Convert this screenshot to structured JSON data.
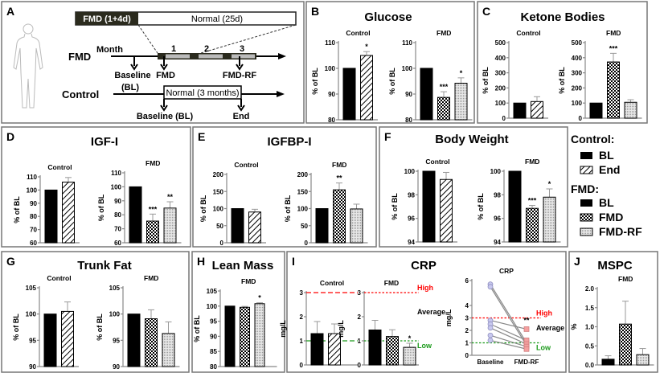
{
  "diagram": {
    "letter": "A",
    "fmd_box": "FMD (1+4d)",
    "normal_box": "Normal (25d)",
    "month_label": "Month",
    "months": [
      "1",
      "2",
      "3"
    ],
    "fmd_row": "FMD",
    "control_row": "Control",
    "fmd_points": [
      "Baseline",
      "(BL)",
      "FMD",
      "FMD-RF"
    ],
    "control_box": "Normal (3 months)",
    "control_points": [
      "Baseline (BL)",
      "End"
    ]
  },
  "legend": {
    "control_heading": "Control:",
    "control_items": [
      {
        "label": "BL",
        "fill": "solid"
      },
      {
        "label": "End",
        "fill": "hatch"
      }
    ],
    "fmd_heading": "FMD:",
    "fmd_items": [
      {
        "label": "BL",
        "fill": "solid"
      },
      {
        "label": "FMD",
        "fill": "crosshatch"
      },
      {
        "label": "FMD-RF",
        "fill": "dotted"
      }
    ]
  },
  "colors": {
    "high_line": "#ff0000",
    "low_line": "#1a9a1a",
    "paired_baseline": "#c8c8ee",
    "paired_fmdrf": "#f4a0a0",
    "error_bar": "#999999"
  },
  "chart_data": [
    {
      "panel": "B",
      "title": "Glucose",
      "type": "bar",
      "subplots": [
        {
          "title": "Control",
          "ylabel": "% of BL",
          "ylim": [
            80,
            110
          ],
          "ticks": [
            80,
            90,
            100,
            110
          ],
          "categories": [
            "BL",
            "End"
          ],
          "values": [
            100,
            105
          ],
          "errors": [
            0,
            1.5
          ],
          "sig": [
            "",
            "*"
          ],
          "fills": [
            "solid",
            "hatch"
          ]
        },
        {
          "title": "FMD",
          "ylabel": "% of BL",
          "ylim": [
            80,
            110
          ],
          "ticks": [
            80,
            90,
            100,
            110
          ],
          "categories": [
            "BL",
            "FMD",
            "FMD-RF"
          ],
          "values": [
            100,
            88.7,
            94.2
          ],
          "errors": [
            0,
            2.2,
            2.1
          ],
          "sig": [
            "",
            "***",
            "*"
          ],
          "fills": [
            "solid",
            "crosshatch",
            "dotted"
          ]
        }
      ]
    },
    {
      "panel": "C",
      "title": "Ketone Bodies",
      "type": "bar",
      "subplots": [
        {
          "title": "Control",
          "ylabel": "% of BL",
          "ylim": [
            0,
            500
          ],
          "ticks": [
            0,
            100,
            200,
            300,
            400,
            500
          ],
          "categories": [
            "BL",
            "End"
          ],
          "values": [
            100,
            110
          ],
          "errors": [
            0,
            32
          ],
          "sig": [
            "",
            ""
          ],
          "fills": [
            "solid",
            "hatch"
          ]
        },
        {
          "title": "FMD",
          "ylabel": "% of BL",
          "ylim": [
            0,
            500
          ],
          "ticks": [
            0,
            100,
            200,
            300,
            400,
            500
          ],
          "categories": [
            "BL",
            "FMD",
            "FMD-RF"
          ],
          "values": [
            100,
            372,
            105
          ],
          "errors": [
            0,
            57,
            17
          ],
          "sig": [
            "",
            "***",
            ""
          ],
          "fills": [
            "solid",
            "crosshatch",
            "dotted"
          ]
        }
      ]
    },
    {
      "panel": "D",
      "title": "IGF-I",
      "type": "bar",
      "subplots": [
        {
          "title": "Control",
          "ylabel": "% of BL",
          "ylim": [
            60,
            110
          ],
          "ticks": [
            60,
            70,
            80,
            90,
            100,
            110
          ],
          "categories": [
            "BL",
            "End"
          ],
          "values": [
            100,
            106
          ],
          "errors": [
            0,
            3.5
          ],
          "sig": [
            "",
            ""
          ],
          "fills": [
            "solid",
            "hatch"
          ]
        },
        {
          "title": "FMD",
          "ylabel": "% of BL",
          "ylim": [
            60,
            110
          ],
          "ticks": [
            60,
            70,
            80,
            90,
            100,
            110
          ],
          "categories": [
            "BL",
            "FMD",
            "FMD-RF"
          ],
          "values": [
            100,
            75.5,
            84.8
          ],
          "errors": [
            0,
            5,
            4.5
          ],
          "sig": [
            "",
            "***",
            "**"
          ],
          "fills": [
            "solid",
            "crosshatch",
            "dotted"
          ]
        }
      ]
    },
    {
      "panel": "E",
      "title": "IGFBP-I",
      "type": "bar",
      "subplots": [
        {
          "title": "Control",
          "ylabel": "% of BL",
          "ylim": [
            0,
            200
          ],
          "ticks": [
            0,
            50,
            100,
            150,
            200
          ],
          "categories": [
            "BL",
            "End"
          ],
          "values": [
            100,
            90
          ],
          "errors": [
            0,
            8
          ],
          "sig": [
            "",
            ""
          ],
          "fills": [
            "solid",
            "hatch"
          ]
        },
        {
          "title": "FMD",
          "ylabel": "% of BL",
          "ylim": [
            0,
            200
          ],
          "ticks": [
            0,
            50,
            100,
            150,
            200
          ],
          "categories": [
            "BL",
            "FMD",
            "FMD-RF"
          ],
          "values": [
            100,
            155,
            99
          ],
          "errors": [
            0,
            20,
            14
          ],
          "sig": [
            "",
            "**",
            ""
          ],
          "fills": [
            "solid",
            "crosshatch",
            "dotted"
          ]
        }
      ]
    },
    {
      "panel": "F",
      "title": "Body Weight",
      "type": "bar",
      "subplots": [
        {
          "title": "Control",
          "ylabel": "% of BL",
          "ylim": [
            94,
            100
          ],
          "ticks": [
            94,
            96,
            98,
            100
          ],
          "categories": [
            "BL",
            "End"
          ],
          "values": [
            100,
            99.3
          ],
          "errors": [
            0,
            0.6
          ],
          "sig": [
            "",
            ""
          ],
          "fills": [
            "solid",
            "hatch"
          ]
        },
        {
          "title": "FMD",
          "ylabel": "% of BL",
          "ylim": [
            94,
            100
          ],
          "ticks": [
            94,
            96,
            98,
            100
          ],
          "categories": [
            "BL",
            "FMD",
            "FMD-RF"
          ],
          "values": [
            100,
            96.85,
            97.8
          ],
          "errors": [
            0,
            0.25,
            0.7
          ],
          "sig": [
            "",
            "***",
            "*"
          ],
          "fills": [
            "solid",
            "crosshatch",
            "dotted"
          ]
        }
      ]
    },
    {
      "panel": "G",
      "title": "Trunk Fat",
      "type": "bar",
      "subplots": [
        {
          "title": "Control",
          "ylabel": "% of BL",
          "ylim": [
            90,
            105
          ],
          "ticks": [
            90,
            95,
            100,
            105
          ],
          "categories": [
            "BL",
            "End"
          ],
          "values": [
            100,
            100.5
          ],
          "errors": [
            0,
            1.8
          ],
          "sig": [
            "",
            ""
          ],
          "fills": [
            "solid",
            "hatch"
          ]
        },
        {
          "title": "FMD",
          "ylabel": "% of BL",
          "ylim": [
            90,
            105
          ],
          "ticks": [
            90,
            95,
            100,
            105
          ],
          "categories": [
            "BL",
            "FMD",
            "FMD-RF"
          ],
          "values": [
            100,
            99.1,
            96.3
          ],
          "errors": [
            0,
            1.7,
            2.2
          ],
          "sig": [
            "",
            "",
            ""
          ],
          "fills": [
            "solid",
            "crosshatch",
            "dotted"
          ]
        }
      ]
    },
    {
      "panel": "H",
      "title": "Lean Mass",
      "type": "bar",
      "subplots": [
        {
          "title": "FMD",
          "ylabel": "% of BL",
          "ylim": [
            80,
            105
          ],
          "ticks": [
            80,
            85,
            90,
            95,
            100,
            105
          ],
          "categories": [
            "BL",
            "FMD",
            "FMD-RF"
          ],
          "values": [
            100,
            99.6,
            100.8
          ],
          "errors": [
            0,
            0.3,
            0.3
          ],
          "sig": [
            "",
            "",
            "*"
          ],
          "fills": [
            "solid",
            "crosshatch",
            "dotted"
          ]
        }
      ]
    },
    {
      "panel": "I",
      "title": "CRP",
      "type": "bar",
      "subplots": [
        {
          "title": "Control",
          "ylabel": "mg/L",
          "ylim": [
            0,
            3
          ],
          "ticks": [
            0,
            1,
            2,
            3
          ],
          "categories": [
            "BL",
            "End"
          ],
          "values": [
            1.3,
            1.3
          ],
          "errors": [
            0.5,
            0.4
          ],
          "sig": [
            "",
            ""
          ],
          "fills": [
            "solid",
            "hatch"
          ],
          "ref_lines": [
            {
              "y": 3,
              "color": "high_line",
              "label": ""
            },
            {
              "y": 1,
              "color": "low_line",
              "label": ""
            }
          ]
        },
        {
          "title": "FMD",
          "ylabel": "mg/L",
          "ylim": [
            0,
            3
          ],
          "ticks": [
            0,
            1,
            2,
            3
          ],
          "categories": [
            "BL",
            "FMD",
            "FMD-RF"
          ],
          "values": [
            1.45,
            1.18,
            0.73
          ],
          "errors": [
            0.4,
            0.28,
            0.17
          ],
          "sig": [
            "",
            "",
            "*"
          ],
          "fills": [
            "solid",
            "crosshatch",
            "dotted"
          ],
          "ref_lines": [
            {
              "y": 3,
              "color": "high_line",
              "label": "High"
            },
            {
              "y": 1,
              "color": "low_line",
              "label": "Low"
            }
          ],
          "band_label": "Average"
        },
        {
          "title": "CRP",
          "type": "paired",
          "ylabel": "mg/L",
          "ylim": [
            0,
            6
          ],
          "ticks": [
            0,
            1,
            2,
            3,
            4,
            6
          ],
          "categories": [
            "Baseline",
            "FMD-RF"
          ],
          "pairs": [
            [
              5.7,
              1.0
            ],
            [
              5.5,
              0.8
            ],
            [
              2.8,
              2.1
            ],
            [
              2.5,
              1.2
            ],
            [
              2.2,
              0.9
            ],
            [
              1.6,
              0.7
            ],
            [
              1.2,
              0.5
            ]
          ],
          "sig": "**",
          "ref_lines": [
            {
              "y": 3,
              "color": "high_line",
              "label": "High"
            },
            {
              "y": 1,
              "color": "low_line",
              "label": "Low"
            }
          ],
          "band_label": "Average"
        }
      ]
    },
    {
      "panel": "J",
      "title": "MSPC",
      "type": "bar",
      "subplots": [
        {
          "title": "FMD",
          "ylabel": "%",
          "ylim": [
            0,
            2
          ],
          "ticks": [
            "0.0",
            "0.5",
            "1.0",
            "1.5",
            "2.0"
          ],
          "categories": [
            "BL",
            "FMD",
            "FMD-RF"
          ],
          "values": [
            0.15,
            1.07,
            0.27
          ],
          "errors": [
            0.09,
            0.6,
            0.16
          ],
          "sig": [
            "",
            "",
            ""
          ],
          "fills": [
            "solid",
            "crosshatch",
            "dotted"
          ]
        }
      ]
    }
  ]
}
